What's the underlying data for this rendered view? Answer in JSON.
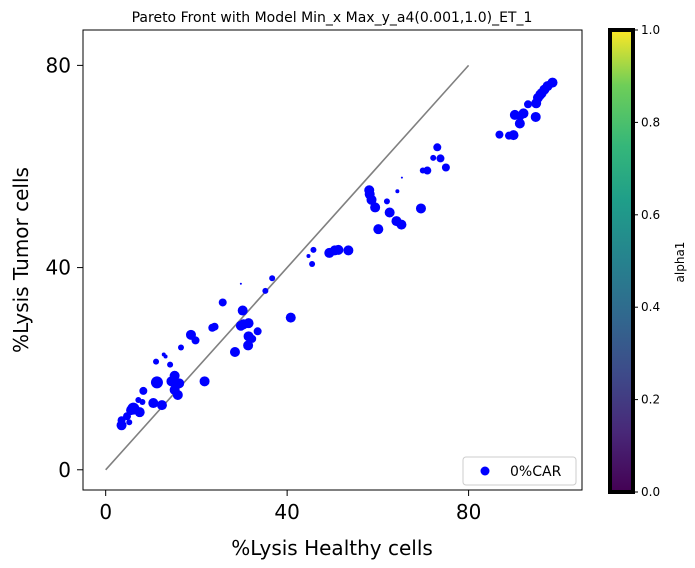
{
  "chart_data": {
    "type": "scatter",
    "title": "Pareto Front with Model Min_x Max_y_a4(0.001,1.0)_ET_1",
    "xlabel": "%Lysis Healthy cells",
    "ylabel": "%Lysis Tumor cells",
    "xlim": [
      -5,
      105
    ],
    "ylim": [
      -4,
      87
    ],
    "xticks": [
      "0",
      "40",
      "80"
    ],
    "yticks": [
      "0",
      "40",
      "80"
    ],
    "grid": false,
    "legend": {
      "placement": "bottom-right",
      "entries": [
        "0%CAR"
      ]
    },
    "reference_line": {
      "x": [
        0,
        80
      ],
      "y": [
        0,
        80
      ],
      "color": "#808080"
    },
    "colorbar": {
      "label": "alpha1",
      "range": [
        0.0,
        1.0
      ],
      "ticks": [
        "0.0",
        "0.2",
        "0.4",
        "0.6",
        "0.8",
        "1.0"
      ],
      "colormap": "viridis"
    },
    "series": [
      {
        "name": "0%CAR",
        "color": "#0000ff",
        "x": [
          3.5,
          3.5,
          5.2,
          5.6,
          6.1,
          4.7,
          7.5,
          7.2,
          8.1,
          8.3,
          10.5,
          11.3,
          12.4,
          14.5,
          15.2,
          15.9,
          16.2,
          15.2,
          14.2,
          13.2,
          11.1,
          12.8,
          16.6,
          18.8,
          19.8,
          21.8,
          23.5,
          24.0,
          25.8,
          28.5,
          30.4,
          29.8,
          31.5,
          31.4,
          32.3,
          30.2,
          31.5,
          33.5,
          29.8,
          35.2,
          36.7,
          40.8,
          44.7,
          45.5,
          45.8,
          49.3,
          50.5,
          51.3,
          53.5,
          58.2,
          58.1,
          58.6,
          59.4,
          60.1,
          62.0,
          62.6,
          64.1,
          64.3,
          65.3,
          65.2,
          69.5,
          69.9,
          70.9,
          72.2,
          73.1,
          73.8,
          75.0,
          86.8,
          88.9,
          89.9,
          90.2,
          91.3,
          91.4,
          92.1,
          93.1,
          94.8,
          94.9,
          95.3,
          95.8,
          96.1,
          96.7,
          97.4,
          98.0,
          98.5
        ],
        "y": [
          8.8,
          9.8,
          9.4,
          11.8,
          12.1,
          10.6,
          11.4,
          13.8,
          13.4,
          15.6,
          13.2,
          17.3,
          12.8,
          17.5,
          18.6,
          14.8,
          17.1,
          15.8,
          20.8,
          22.4,
          21.4,
          22.8,
          24.2,
          26.7,
          25.6,
          17.5,
          28.1,
          28.3,
          33.1,
          23.3,
          28.8,
          28.5,
          29.0,
          24.6,
          25.9,
          31.5,
          26.4,
          27.4,
          36.8,
          35.4,
          37.9,
          30.1,
          42.3,
          40.7,
          43.5,
          42.9,
          43.4,
          43.5,
          43.4,
          54.5,
          55.3,
          53.4,
          51.9,
          47.6,
          53.1,
          50.9,
          49.2,
          55.1,
          57.8,
          48.5,
          51.7,
          59.2,
          59.2,
          61.7,
          63.8,
          61.6,
          59.8,
          66.3,
          66.1,
          66.2,
          70.2,
          68.5,
          69.9,
          70.5,
          72.3,
          69.8,
          72.5,
          73.6,
          74.2,
          74.5,
          75.2,
          75.9,
          76.3,
          76.6
        ],
        "sizes": [
          5,
          4,
          3,
          5,
          6,
          4,
          5,
          3,
          3,
          4,
          5,
          6,
          5,
          5,
          5,
          5,
          5,
          5,
          3,
          2,
          3,
          2,
          3,
          5,
          4,
          5,
          4,
          4,
          4,
          5,
          5,
          5,
          5,
          5,
          4,
          5,
          5,
          4,
          1,
          3,
          3,
          5,
          2,
          3,
          3,
          5,
          5,
          5,
          5,
          5,
          5,
          5,
          5,
          5,
          3,
          5,
          5,
          2,
          1,
          5,
          5,
          3,
          4,
          3,
          4,
          4,
          4,
          4,
          4,
          5,
          5,
          5,
          4,
          5,
          4,
          5,
          5,
          5,
          5,
          5,
          5,
          5,
          4,
          5
        ]
      }
    ]
  }
}
